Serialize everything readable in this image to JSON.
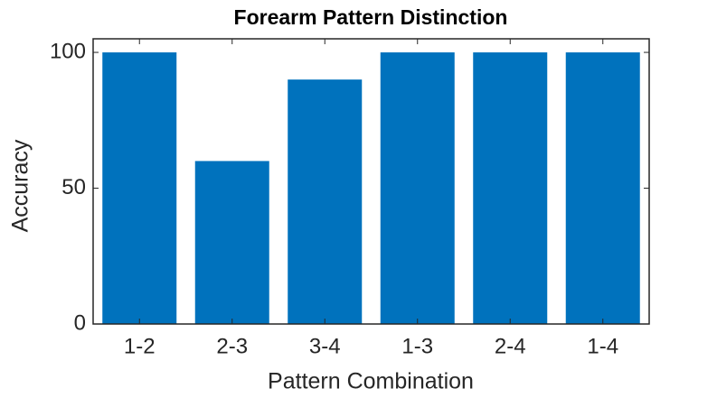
{
  "chart_data": {
    "type": "bar",
    "title": "Forearm Pattern Distinction",
    "x_label": "Pattern Combination",
    "y_label": "Accuracy",
    "categories": [
      "1-2",
      "2-3",
      "3-4",
      "1-3",
      "2-4",
      "1-4"
    ],
    "values": [
      100,
      60,
      90,
      100,
      100,
      100
    ],
    "color": "#0072bd",
    "ylim": [
      0,
      105
    ],
    "yticks": [
      0,
      50,
      100
    ],
    "grid": false
  }
}
